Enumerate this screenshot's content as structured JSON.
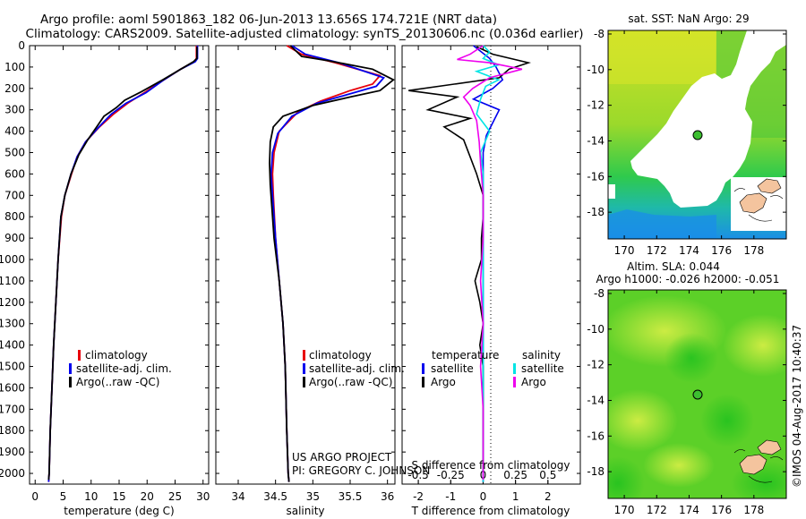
{
  "title_line1": "Argo profile: aoml 5901863_182 06-Jun-2013 13.656S 174.721E (NRT data)",
  "title_line2": "Climatology: CARS2009. Satellite-adjusted climatology: synTS_20130606.nc (0.036d earlier)",
  "project_line1": "US ARGO PROJECT",
  "project_line2": "PI: GREGORY C. JOHNSON",
  "timestamp": "©IMOS 04-Aug-2017 10:40:37",
  "colors": {
    "clim": "#e8000b",
    "sat": "#0000ee",
    "argo": "#000000",
    "sal_sat": "#00e5e5",
    "sal_argo": "#ee00ee"
  },
  "chart_data": [
    {
      "id": "temperature",
      "type": "line",
      "xlabel": "temperature (deg C)",
      "xlim": [
        -1,
        31
      ],
      "xticks": [
        "0",
        "5",
        "10",
        "15",
        "20",
        "25",
        "30"
      ],
      "ylim": [
        0,
        2050
      ],
      "yticks": [
        "0",
        "100",
        "200",
        "300",
        "400",
        "500",
        "600",
        "700",
        "800",
        "900",
        "1000",
        "1100",
        "1200",
        "1300",
        "1400",
        "1500",
        "1600",
        "1700",
        "1800",
        "1900",
        "2000"
      ],
      "legend": [
        "climatology",
        "satellite-adj. clim.",
        "Argo(..raw -QC)"
      ],
      "series": [
        {
          "name": "climatology",
          "points": [
            [
              28.8,
              0
            ],
            [
              28.8,
              60
            ],
            [
              28.4,
              75
            ],
            [
              26,
              110
            ],
            [
              23,
              160
            ],
            [
              19.5,
              220
            ],
            [
              16.5,
              270
            ],
            [
              14,
              320
            ],
            [
              11.5,
              380
            ],
            [
              9,
              450
            ],
            [
              7.5,
              520
            ],
            [
              6.5,
              600
            ],
            [
              5.3,
              700
            ],
            [
              4.7,
              800
            ],
            [
              4.1,
              1000
            ],
            [
              3.7,
              1200
            ],
            [
              3.3,
              1400
            ],
            [
              3,
              1600
            ],
            [
              2.7,
              1800
            ],
            [
              2.5,
              2000
            ],
            [
              2.4,
              2040
            ]
          ]
        },
        {
          "name": "satellite-adj. clim.",
          "points": [
            [
              29,
              0
            ],
            [
              29,
              60
            ],
            [
              28.6,
              75
            ],
            [
              26,
              110
            ],
            [
              23,
              160
            ],
            [
              19.8,
              220
            ],
            [
              16.2,
              270
            ],
            [
              13.6,
              320
            ],
            [
              11.4,
              380
            ],
            [
              9,
              450
            ],
            [
              7.5,
              520
            ],
            [
              6.4,
              600
            ],
            [
              5.3,
              700
            ],
            [
              4.6,
              800
            ],
            [
              4.1,
              1000
            ],
            [
              3.7,
              1200
            ],
            [
              3.3,
              1400
            ],
            [
              3,
              1600
            ],
            [
              2.7,
              1800
            ],
            [
              2.5,
              2000
            ],
            [
              2.4,
              2040
            ]
          ]
        },
        {
          "name": "Argo(..raw -QC)",
          "points": [
            [
              28.9,
              5
            ],
            [
              28.9,
              60
            ],
            [
              28.3,
              75
            ],
            [
              26,
              110
            ],
            [
              22.8,
              160
            ],
            [
              19,
              215
            ],
            [
              16,
              255
            ],
            [
              14.5,
              290
            ],
            [
              12.3,
              330
            ],
            [
              11,
              380
            ],
            [
              9.4,
              440
            ],
            [
              7.8,
              510
            ],
            [
              6.4,
              600
            ],
            [
              5.3,
              700
            ],
            [
              4.6,
              800
            ],
            [
              4.1,
              1000
            ],
            [
              3.7,
              1200
            ],
            [
              3.3,
              1400
            ],
            [
              3,
              1600
            ],
            [
              2.7,
              1800
            ],
            [
              2.5,
              2000
            ],
            [
              2.4,
              2030
            ]
          ]
        }
      ]
    },
    {
      "id": "salinity",
      "type": "line",
      "xlabel": "salinity",
      "xlim": [
        33.7,
        36.1
      ],
      "xticks": [
        "34",
        "34.5",
        "35",
        "35.5",
        "36"
      ],
      "ylim": [
        0,
        2050
      ],
      "legend": [
        "climatology",
        "satellite-adj. clim.",
        "Argo(..raw -QC)"
      ],
      "series": [
        {
          "name": "climatology",
          "points": [
            [
              34.65,
              0
            ],
            [
              34.85,
              40
            ],
            [
              35.3,
              80
            ],
            [
              35.9,
              140
            ],
            [
              35.8,
              180
            ],
            [
              35.5,
              210
            ],
            [
              35.1,
              260
            ],
            [
              34.8,
              310
            ],
            [
              34.55,
              400
            ],
            [
              34.48,
              500
            ],
            [
              34.46,
              600
            ],
            [
              34.47,
              700
            ],
            [
              34.5,
              900
            ],
            [
              34.55,
              1100
            ],
            [
              34.6,
              1300
            ],
            [
              34.63,
              1500
            ],
            [
              34.65,
              1800
            ],
            [
              34.67,
              2000
            ],
            [
              34.68,
              2040
            ]
          ]
        },
        {
          "name": "satellite-adj. clim.",
          "points": [
            [
              34.72,
              0
            ],
            [
              34.9,
              40
            ],
            [
              35.35,
              80
            ],
            [
              35.95,
              150
            ],
            [
              35.85,
              190
            ],
            [
              35.45,
              230
            ],
            [
              35.05,
              270
            ],
            [
              34.72,
              330
            ],
            [
              34.53,
              410
            ],
            [
              34.46,
              500
            ],
            [
              34.44,
              600
            ],
            [
              34.46,
              700
            ],
            [
              34.5,
              900
            ],
            [
              34.55,
              1100
            ],
            [
              34.6,
              1300
            ],
            [
              34.63,
              1500
            ],
            [
              34.65,
              1800
            ],
            [
              34.67,
              2000
            ],
            [
              34.68,
              2040
            ]
          ]
        },
        {
          "name": "Argo(..raw -QC)",
          "points": [
            [
              34.7,
              0
            ],
            [
              34.85,
              50
            ],
            [
              35.2,
              70
            ],
            [
              35.8,
              110
            ],
            [
              36.08,
              160
            ],
            [
              35.9,
              210
            ],
            [
              35.5,
              240
            ],
            [
              35.0,
              280
            ],
            [
              34.6,
              330
            ],
            [
              34.47,
              380
            ],
            [
              34.43,
              450
            ],
            [
              34.42,
              550
            ],
            [
              34.43,
              650
            ],
            [
              34.45,
              750
            ],
            [
              34.48,
              900
            ],
            [
              34.55,
              1100
            ],
            [
              34.6,
              1300
            ],
            [
              34.63,
              1500
            ],
            [
              34.65,
              1800
            ],
            [
              34.67,
              2000
            ],
            [
              34.68,
              2040
            ]
          ]
        }
      ]
    },
    {
      "id": "difference",
      "type": "line",
      "xlabel": "T difference from climatology",
      "xlabel_top": "S difference from climatology",
      "xlim": [
        -2.5,
        3
      ],
      "xticks": [
        "-2",
        "-1",
        "0",
        "1",
        "2"
      ],
      "xticks_top": [
        "-0.5",
        "-0.25",
        "0",
        "0.25",
        "0.5"
      ],
      "ylim": [
        0,
        2050
      ],
      "legend_temperature": {
        "title": "temperature",
        "items": [
          "satellite",
          "Argo"
        ]
      },
      "legend_salinity": {
        "title": "salinity",
        "items": [
          "satellite",
          "Argo"
        ]
      },
      "series": [
        {
          "name": "temperature satellite",
          "points": [
            [
              -0.3,
              0
            ],
            [
              0.2,
              60
            ],
            [
              0.4,
              100
            ],
            [
              0.6,
              160
            ],
            [
              0.3,
              200
            ],
            [
              -0.3,
              250
            ],
            [
              0.5,
              300
            ],
            [
              0.3,
              360
            ],
            [
              0.1,
              420
            ],
            [
              0,
              500
            ],
            [
              0,
              600
            ],
            [
              0,
              800
            ],
            [
              0,
              1000
            ],
            [
              0,
              1200
            ],
            [
              0,
              1400
            ],
            [
              0,
              1600
            ],
            [
              0,
              1800
            ],
            [
              0,
              2040
            ]
          ]
        },
        {
          "name": "temperature Argo",
          "points": [
            [
              -0.2,
              5
            ],
            [
              0.3,
              40
            ],
            [
              1.4,
              80
            ],
            [
              0.8,
              110
            ],
            [
              0.5,
              150
            ],
            [
              -2.3,
              210
            ],
            [
              -0.8,
              240
            ],
            [
              -1.7,
              300
            ],
            [
              -0.4,
              340
            ],
            [
              -1.2,
              380
            ],
            [
              -0.6,
              440
            ],
            [
              -0.4,
              520
            ],
            [
              -0.2,
              600
            ],
            [
              0,
              700
            ],
            [
              0,
              800
            ],
            [
              -0.05,
              900
            ],
            [
              -0.05,
              1000
            ],
            [
              -0.25,
              1100
            ],
            [
              -0.1,
              1200
            ],
            [
              0,
              1300
            ],
            [
              -0.1,
              1400
            ],
            [
              0,
              1500
            ],
            [
              0,
              1600
            ],
            [
              0,
              1800
            ],
            [
              0,
              2030
            ]
          ]
        },
        {
          "name": "salinity satellite",
          "points": [
            [
              0,
              0
            ],
            [
              0.05,
              30
            ],
            [
              0,
              60
            ],
            [
              0.12,
              90
            ],
            [
              -0.05,
              120
            ],
            [
              0.12,
              160
            ],
            [
              0.02,
              190
            ],
            [
              -0.02,
              250
            ],
            [
              -0.05,
              320
            ],
            [
              0.05,
              400
            ],
            [
              -0.02,
              500
            ],
            [
              0,
              600
            ],
            [
              0,
              800
            ],
            [
              0,
              1000
            ],
            [
              0,
              1200
            ],
            [
              0,
              1400
            ],
            [
              0,
              1600
            ],
            [
              0,
              1800
            ],
            [
              0,
              2040
            ]
          ]
        },
        {
          "name": "salinity Argo",
          "points": [
            [
              0,
              0
            ],
            [
              -0.1,
              40
            ],
            [
              -0.2,
              65
            ],
            [
              0.05,
              80
            ],
            [
              0.3,
              110
            ],
            [
              0.05,
              150
            ],
            [
              -0.08,
              200
            ],
            [
              -0.15,
              240
            ],
            [
              -0.1,
              280
            ],
            [
              -0.05,
              350
            ],
            [
              -0.03,
              450
            ],
            [
              -0.02,
              550
            ],
            [
              0,
              700
            ],
            [
              0,
              900
            ],
            [
              -0.02,
              1100
            ],
            [
              0,
              1300
            ],
            [
              -0.02,
              1500
            ],
            [
              0,
              1700
            ],
            [
              0,
              1900
            ],
            [
              0,
              2030
            ]
          ]
        }
      ]
    },
    {
      "id": "sst_map",
      "type": "heatmap",
      "title": "sat. SST: NaN Argo: 29",
      "xticks": [
        "170",
        "172",
        "174",
        "176",
        "178"
      ],
      "yticks": [
        "-8",
        "-10",
        "-12",
        "-14",
        "-16",
        "-18"
      ],
      "xlim": [
        169,
        180
      ],
      "ylim": [
        -19.5,
        -7.8
      ],
      "marker": {
        "lon": 174.7,
        "lat": -13.66
      }
    },
    {
      "id": "sla_map",
      "type": "heatmap",
      "title_line1": "Altim. SLA: 0.044",
      "title_line2": "Argo h1000: -0.026 h2000: -0.051",
      "xticks": [
        "170",
        "172",
        "174",
        "176",
        "178"
      ],
      "yticks": [
        "-8",
        "-10",
        "-12",
        "-14",
        "-16",
        "-18"
      ],
      "xlim": [
        169,
        180
      ],
      "ylim": [
        -19.5,
        -7.8
      ],
      "marker": {
        "lon": 174.7,
        "lat": -13.66
      }
    }
  ]
}
